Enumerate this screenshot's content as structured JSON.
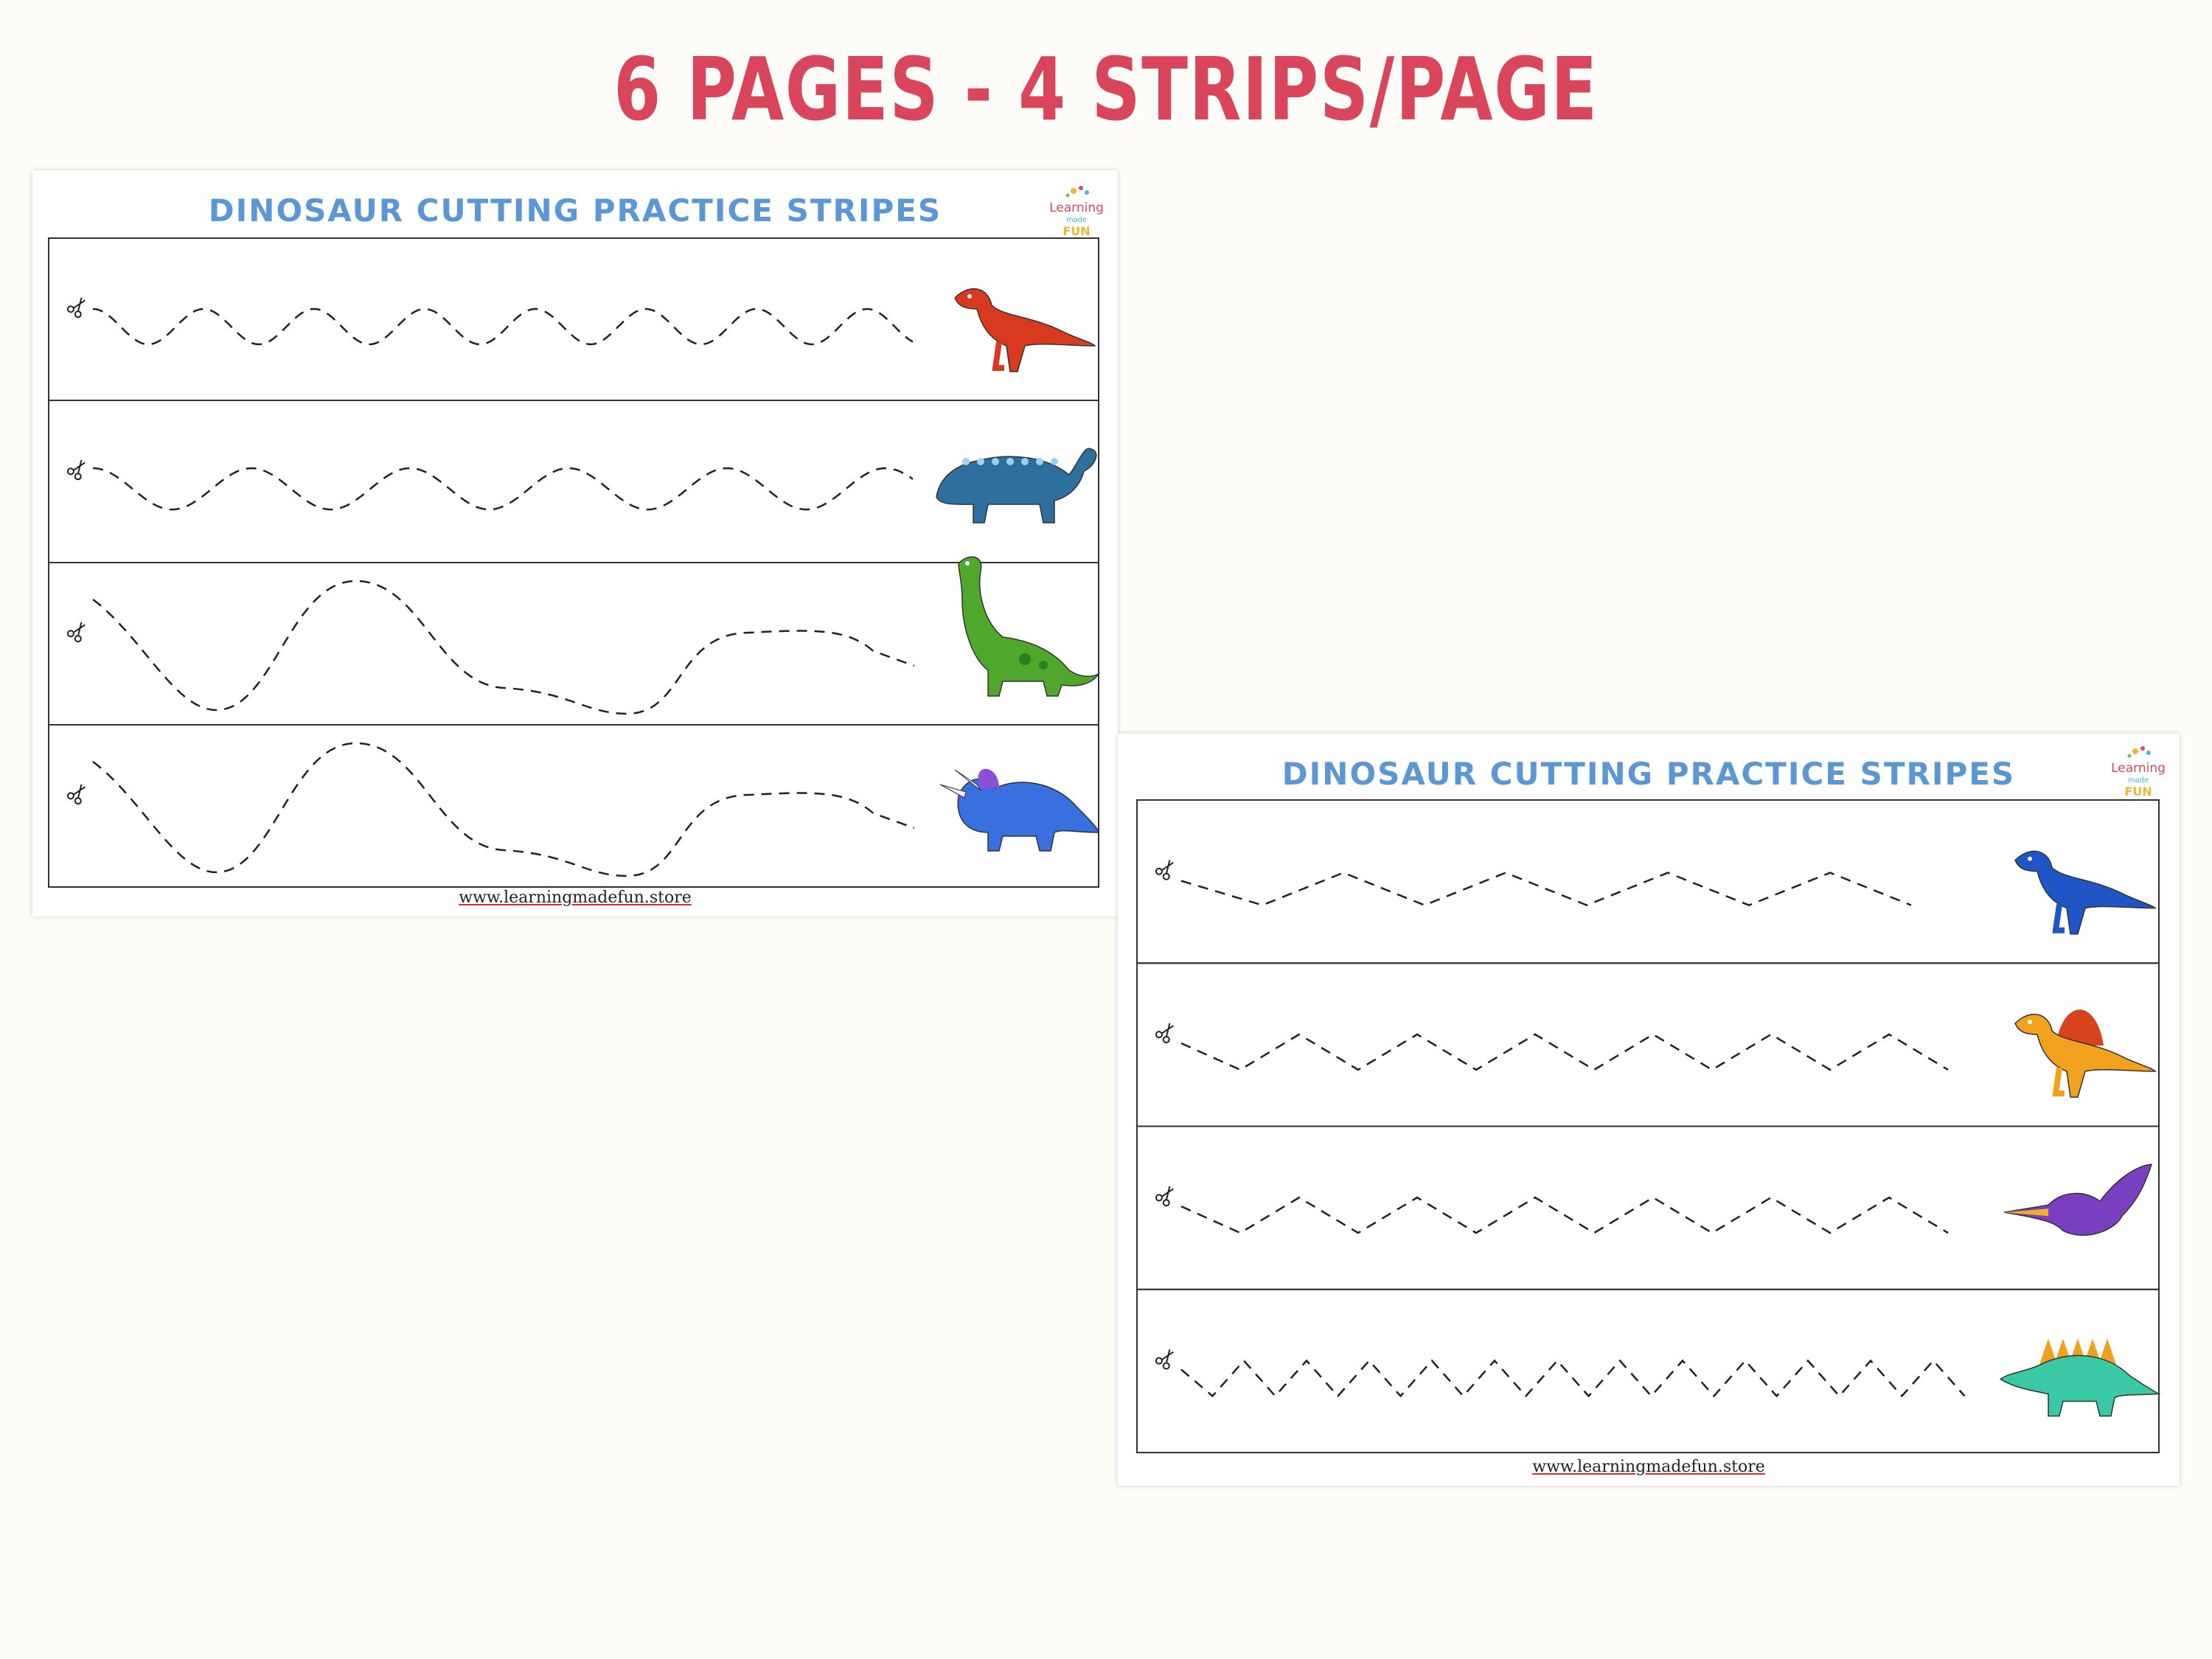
{
  "headline": "6 PAGES - 4 STRIPS/PAGE",
  "sheets": [
    {
      "title": "DINOSAUR CUTTING PRACTICE STRIPES",
      "logo": {
        "line1": "Learning",
        "line2": "made",
        "line3": "FUN"
      },
      "footer": "www.learningmadefun.store",
      "strips": [
        {
          "pattern": "small-wave",
          "dino": "raptor-icon",
          "color": "#d83a1f"
        },
        {
          "pattern": "wave",
          "dino": "ankylosaurus-icon",
          "color": "#2e6f9e"
        },
        {
          "pattern": "big-curve",
          "dino": "brachiosaurus-icon",
          "color": "#4fa82c"
        },
        {
          "pattern": "big-curve",
          "dino": "triceratops-icon",
          "color": "#3a6fe0"
        }
      ]
    },
    {
      "title": "DINOSAUR CUTTING PRACTICE STRIPES",
      "logo": {
        "line1": "Learning",
        "line2": "made",
        "line3": "FUN"
      },
      "footer": "www.learningmadefun.store",
      "strips": [
        {
          "pattern": "wide-zigzag",
          "dino": "t-rex-icon",
          "color": "#1f55c4"
        },
        {
          "pattern": "zigzag",
          "dino": "spinosaurus-icon",
          "color": "#f0a21e"
        },
        {
          "pattern": "zigzag",
          "dino": "pterodactyl-icon",
          "color": "#7a3fc0"
        },
        {
          "pattern": "tight-zigzag",
          "dino": "stegosaurus-icon",
          "color": "#3ac9a4"
        }
      ]
    }
  ]
}
